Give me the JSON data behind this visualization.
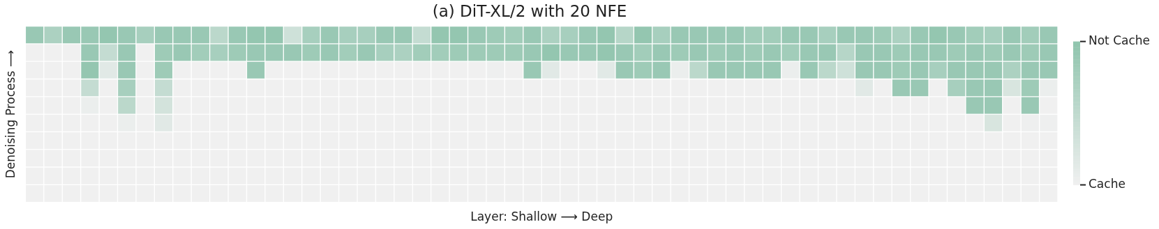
{
  "chart_data": {
    "type": "heatmap",
    "title": "(a) DiT-XL/2 with 20 NFE",
    "xlabel": "Layer: Shallow ⟶ Deep",
    "ylabel": "Denoising Process ⟶",
    "categories": [
      null,
      null,
      null,
      null,
      null,
      null,
      null,
      null,
      null,
      null,
      null,
      null,
      null,
      null,
      null,
      null,
      null,
      null,
      null,
      null,
      null,
      null,
      null,
      null,
      null,
      null,
      null,
      null,
      null,
      null,
      null,
      null,
      null,
      null,
      null,
      null,
      null,
      null,
      null,
      null,
      null,
      null,
      null,
      null,
      null,
      null,
      null,
      null,
      null,
      null,
      null,
      null,
      null,
      null,
      null,
      null
    ],
    "y_categories": [
      null,
      null,
      null,
      null,
      null,
      null,
      null,
      null,
      null,
      null
    ],
    "cells": [
      [
        0.9,
        0.7,
        0.9,
        0.9,
        0.95,
        0.9,
        0.75,
        0.9,
        0.9,
        0.9,
        0.55,
        0.9,
        0.95,
        0.95,
        0.35,
        0.75,
        0.9,
        0.75,
        0.75,
        0.9,
        0.9,
        0.45,
        0.95,
        0.95,
        0.9,
        0.85,
        0.8,
        0.9,
        0.7,
        0.75,
        0.9,
        0.95,
        0.6,
        0.95,
        0.75,
        0.9,
        0.9,
        0.9,
        0.9,
        0.8,
        0.8,
        0.9,
        0.9,
        0.75,
        0.9,
        0.9,
        0.85,
        0.7,
        0.9,
        0.95,
        0.9,
        0.8,
        0.75,
        0.9,
        0.8,
        0.9
      ],
      [
        0,
        0,
        0,
        0.9,
        0.45,
        0.9,
        0,
        0.85,
        0.9,
        0.8,
        0.75,
        0.85,
        0.9,
        0.9,
        0.9,
        0.85,
        0.9,
        0.8,
        0.9,
        0.75,
        0.7,
        0.8,
        0.8,
        0.85,
        0.85,
        0.85,
        0.85,
        0.9,
        0.95,
        0.9,
        0.9,
        0.95,
        0.9,
        0.8,
        0.9,
        0.85,
        0.9,
        0.85,
        0.9,
        0.85,
        0.9,
        0.8,
        0.9,
        0.9,
        0.6,
        0.9,
        0.9,
        0.85,
        0.9,
        0.9,
        0.85,
        0.9,
        0.85,
        0.9,
        0.85,
        0.9
      ],
      [
        0,
        0,
        0,
        0.95,
        0.15,
        0.9,
        0,
        0.85,
        0,
        0,
        0,
        0,
        0.9,
        0,
        0,
        0,
        0,
        0,
        0,
        0,
        0,
        0,
        0,
        0,
        0,
        0.02,
        0,
        0.9,
        0.15,
        0,
        0,
        0.15,
        0.9,
        0.85,
        0.9,
        0.05,
        0.55,
        0.9,
        0.9,
        0.9,
        0.9,
        0.05,
        0.9,
        0.55,
        0.35,
        0.9,
        0.9,
        0.85,
        0.9,
        0.75,
        0.9,
        0.9,
        0.9,
        0.7,
        0.9,
        0.9
      ],
      [
        0,
        0,
        0,
        0.45,
        0,
        0.75,
        0,
        0.45,
        0,
        0,
        0,
        0,
        0,
        0,
        0,
        0,
        0,
        0,
        0,
        0,
        0,
        0,
        0,
        0,
        0,
        0,
        0,
        0,
        0,
        0,
        0,
        0,
        0,
        0,
        0,
        0,
        0,
        0,
        0,
        0,
        0,
        0,
        0,
        0,
        0,
        0.15,
        0,
        0.9,
        0.9,
        0,
        0.75,
        0.9,
        0.9,
        0.25,
        0.85,
        0.05
      ],
      [
        0,
        0,
        0,
        0.05,
        0,
        0.55,
        0,
        0.3,
        0,
        0,
        0,
        0,
        0,
        0,
        0,
        0,
        0,
        0,
        0,
        0,
        0,
        0,
        0,
        0,
        0,
        0,
        0,
        0,
        0,
        0,
        0,
        0,
        0,
        0,
        0,
        0,
        0,
        0,
        0,
        0,
        0,
        0,
        0,
        0,
        0,
        0,
        0,
        0,
        0,
        0,
        0,
        0.9,
        0.9,
        0,
        0.9,
        0
      ],
      [
        0,
        0,
        0,
        0,
        0,
        0.05,
        0,
        0.15,
        0,
        0,
        0,
        0,
        0,
        0,
        0,
        0,
        0,
        0,
        0,
        0,
        0,
        0,
        0,
        0,
        0,
        0,
        0,
        0,
        0,
        0,
        0,
        0,
        0,
        0,
        0,
        0,
        0,
        0,
        0,
        0,
        0,
        0,
        0,
        0,
        0,
        0,
        0,
        0,
        0,
        0,
        0,
        0,
        0.25,
        0,
        0.02,
        0.02
      ],
      [
        0,
        0,
        0,
        0,
        0,
        0,
        0,
        0,
        0,
        0,
        0,
        0,
        0,
        0,
        0,
        0,
        0,
        0,
        0,
        0,
        0,
        0,
        0,
        0,
        0,
        0,
        0,
        0,
        0,
        0,
        0,
        0,
        0,
        0,
        0,
        0,
        0,
        0,
        0,
        0,
        0,
        0,
        0,
        0,
        0,
        0,
        0,
        0,
        0,
        0,
        0,
        0,
        0,
        0,
        0,
        0
      ],
      [
        0,
        0,
        0,
        0,
        0,
        0,
        0,
        0,
        0,
        0,
        0,
        0,
        0,
        0,
        0,
        0,
        0,
        0,
        0,
        0,
        0,
        0,
        0,
        0,
        0,
        0,
        0,
        0,
        0,
        0,
        0,
        0,
        0,
        0,
        0,
        0,
        0,
        0,
        0,
        0,
        0,
        0,
        0,
        0,
        0,
        0,
        0,
        0,
        0,
        0,
        0,
        0,
        0,
        0,
        0,
        0
      ],
      [
        0,
        0,
        0,
        0,
        0,
        0,
        0,
        0,
        0,
        0,
        0,
        0,
        0,
        0,
        0,
        0,
        0,
        0,
        0,
        0,
        0,
        0,
        0,
        0,
        0,
        0,
        0,
        0,
        0,
        0,
        0,
        0,
        0,
        0,
        0,
        0,
        0,
        0,
        0,
        0,
        0,
        0,
        0,
        0,
        0,
        0,
        0,
        0,
        0,
        0,
        0,
        0,
        0,
        0,
        0,
        0
      ],
      [
        0,
        0,
        0,
        0,
        0,
        0,
        0,
        0,
        0,
        0,
        0,
        0,
        0,
        0,
        0,
        0,
        0,
        0,
        0,
        0,
        0,
        0,
        0,
        0,
        0,
        0,
        0,
        0,
        0,
        0,
        0,
        0,
        0,
        0,
        0,
        0,
        0,
        0,
        0,
        0,
        0,
        0,
        0,
        0,
        0,
        0,
        0,
        0,
        0,
        0,
        0,
        0,
        0,
        0,
        0,
        0
      ]
    ],
    "colors": [
      "#f0f0f0",
      "#8fc4ad"
    ],
    "clim": [
      0,
      1
    ],
    "cticks": [
      {
        "value": 0,
        "label": "Cache"
      },
      {
        "value": 1,
        "label": "Not Cache"
      }
    ],
    "tick_labels": false
  }
}
